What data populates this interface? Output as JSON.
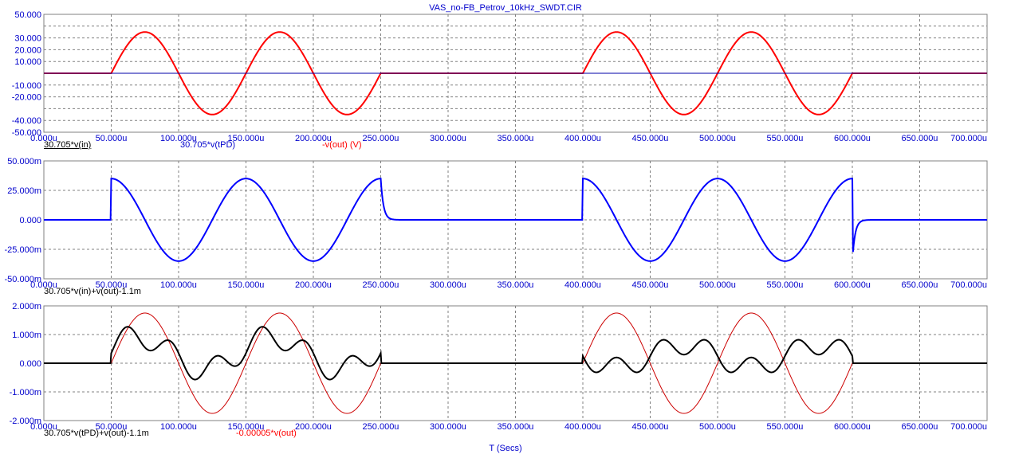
{
  "title": "VAS_no-FB_Petrov_10kHz_SWDT.CIR",
  "chart_data": {
    "type": "line",
    "xlabel": "T (Secs)",
    "xlim": [
      0,
      700
    ],
    "x_ticks": [
      "0.000u",
      "50.000u",
      "100.000u",
      "150.000u",
      "200.000u",
      "250.000u",
      "300.000u",
      "350.000u",
      "400.000u",
      "450.000u",
      "500.000u",
      "550.000u",
      "600.000u",
      "650.000u",
      "700.000u"
    ],
    "grid": true,
    "panels": [
      {
        "ylim": [
          -50,
          50
        ],
        "y_ticks": [
          {
            "v": 50,
            "label": "50.000"
          },
          {
            "v": 30,
            "label": "30.000"
          },
          {
            "v": 20,
            "label": "20.000"
          },
          {
            "v": 10,
            "label": "10.000"
          },
          {
            "v": -10,
            "label": "-10.000"
          },
          {
            "v": -20,
            "label": "-20.000"
          },
          {
            "v": -40,
            "label": "-40.000"
          },
          {
            "v": -50,
            "label": "-50.000"
          }
        ],
        "legend": [
          {
            "label": "30.705*v(in)",
            "color": "#000000",
            "underline": true
          },
          {
            "label": "30.705*v(tPD)",
            "color": "#0000cc"
          },
          {
            "label": "-v(out) (V)",
            "color": "#ff0000"
          }
        ],
        "series": [
          {
            "label": "30.705*v(in)",
            "color": "#000000",
            "width": 1,
            "amp": 35,
            "shape": "sine_gated",
            "sign": 1
          },
          {
            "label": "30.705*v(tPD)",
            "color": "#0000aa",
            "width": 1,
            "amp": 0,
            "shape": "flat",
            "sign": 1
          },
          {
            "label": "-v(out) (V)",
            "color": "#ff0000",
            "width": 2,
            "amp": 35,
            "shape": "sine_gated",
            "sign": 1
          }
        ]
      },
      {
        "ylim": [
          -50,
          50
        ],
        "y_ticks": [
          {
            "v": 50,
            "label": "50.000m"
          },
          {
            "v": 25,
            "label": "25.000m"
          },
          {
            "v": 0,
            "label": "0.000"
          },
          {
            "v": -25,
            "label": "-25.000m"
          },
          {
            "v": -50,
            "label": "-50.000m"
          }
        ],
        "legend": [
          {
            "label": "30.705*v(in)+v(out)-1.1m",
            "color": "#000000"
          }
        ],
        "series": [
          {
            "label": "30.705*v(in)+v(out)-1.1m",
            "color": "#0000ff",
            "width": 2,
            "amp": 35,
            "shape": "cos_gated_decay",
            "sign": 1
          }
        ]
      },
      {
        "ylim": [
          -2,
          2
        ],
        "y_ticks": [
          {
            "v": 2,
            "label": "2.000m"
          },
          {
            "v": 1,
            "label": "1.000m"
          },
          {
            "v": 0,
            "label": "0.000"
          },
          {
            "v": -1,
            "label": "-1.000m"
          },
          {
            "v": -2,
            "label": "-2.000m"
          }
        ],
        "legend": [
          {
            "label": "30.705*v(tPD)+v(out)-1.1m",
            "color": "#000000"
          },
          {
            "label": "-0.00005*v(out)",
            "color": "#ff0000"
          }
        ],
        "series": [
          {
            "label": "-0.00005*v(out)",
            "color": "#cc0000",
            "width": 1,
            "amp": 1.75,
            "shape": "sine_gated",
            "sign": 1
          },
          {
            "label": "30.705*v(tPD)+v(out)-1.1m",
            "color": "#000000",
            "width": 2,
            "amp": 0,
            "shape": "distortion",
            "sign": 1
          }
        ]
      }
    ]
  }
}
